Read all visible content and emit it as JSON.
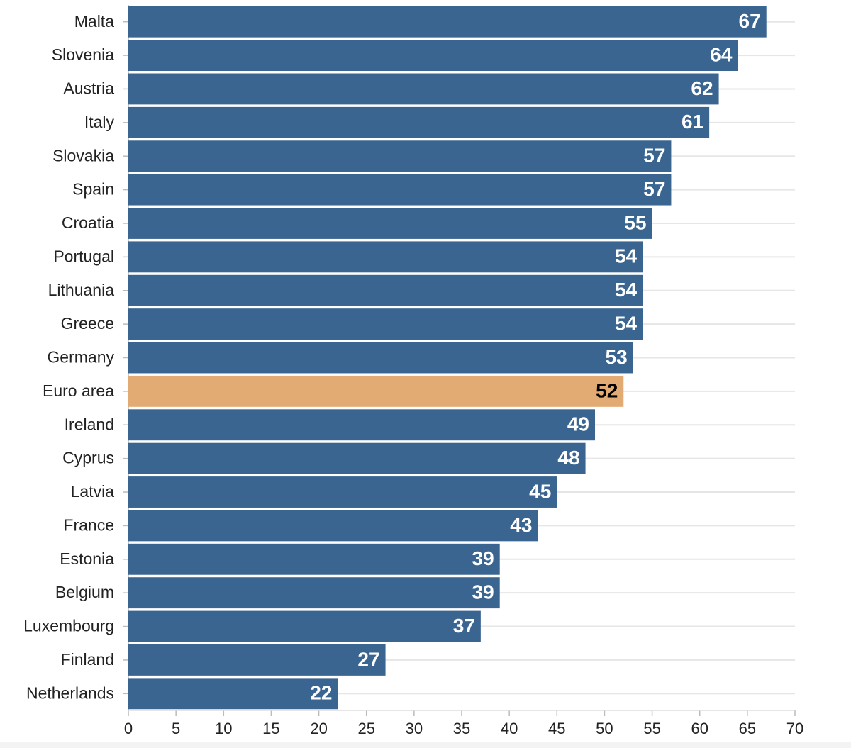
{
  "chart_data": {
    "type": "barh",
    "categories": [
      "Malta",
      "Slovenia",
      "Austria",
      "Italy",
      "Slovakia",
      "Spain",
      "Croatia",
      "Portugal",
      "Lithuania",
      "Greece",
      "Germany",
      "Euro area",
      "Ireland",
      "Cyprus",
      "Latvia",
      "France",
      "Estonia",
      "Belgium",
      "Luxembourg",
      "Finland",
      "Netherlands"
    ],
    "values": [
      67,
      64,
      62,
      61,
      57,
      57,
      55,
      54,
      54,
      54,
      53,
      52,
      49,
      48,
      45,
      43,
      39,
      39,
      37,
      27,
      22
    ],
    "colors": [
      "#3a6591",
      "#3a6591",
      "#3a6591",
      "#3a6591",
      "#3a6591",
      "#3a6591",
      "#3a6591",
      "#3a6591",
      "#3a6591",
      "#3a6591",
      "#3a6591",
      "#e2ab74",
      "#3a6591",
      "#3a6591",
      "#3a6591",
      "#3a6591",
      "#3a6591",
      "#3a6591",
      "#3a6591",
      "#3a6591",
      "#3a6591"
    ],
    "label_colors": [
      "#ffffff",
      "#ffffff",
      "#ffffff",
      "#ffffff",
      "#ffffff",
      "#ffffff",
      "#ffffff",
      "#ffffff",
      "#ffffff",
      "#ffffff",
      "#ffffff",
      "#000000",
      "#ffffff",
      "#ffffff",
      "#ffffff",
      "#ffffff",
      "#ffffff",
      "#ffffff",
      "#ffffff",
      "#ffffff",
      "#ffffff"
    ],
    "xlim": [
      0,
      70
    ],
    "xticks": [
      0,
      5,
      10,
      15,
      20,
      25,
      30,
      35,
      40,
      45,
      50,
      55,
      60,
      65,
      70
    ],
    "grid": true
  }
}
